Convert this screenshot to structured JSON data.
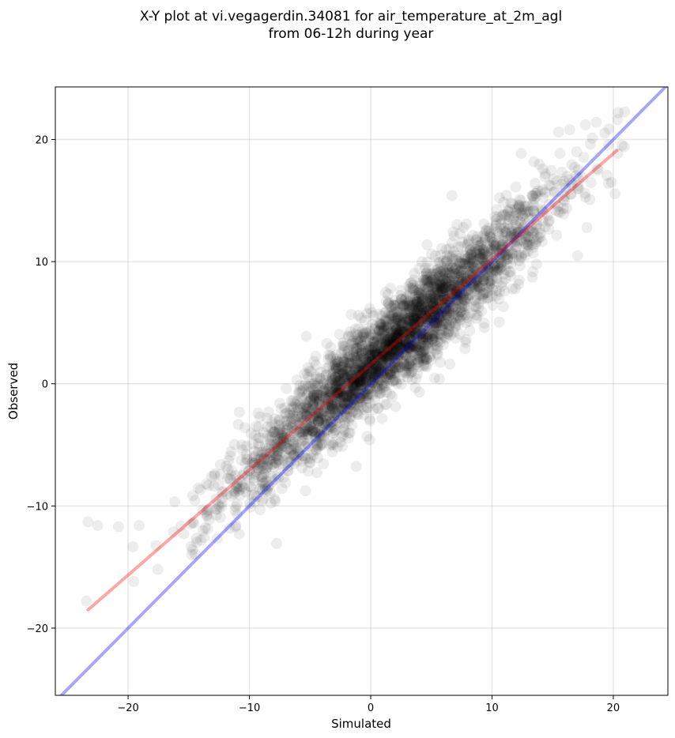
{
  "chart_data": {
    "type": "scatter",
    "title_line1": "X-Y plot at vi.vegagerdin.34081 for air_temperature_at_2m_agl",
    "title_line2": "from 06-12h during year",
    "xlabel": "Simulated",
    "ylabel": "Observed",
    "xlim": [
      -26,
      24.5
    ],
    "ylim": [
      -25.5,
      24.3
    ],
    "xticks": [
      -20,
      -10,
      0,
      10,
      20
    ],
    "xtick_labels": [
      "−20",
      "−10",
      "0",
      "10",
      "20"
    ],
    "yticks": [
      -20,
      -10,
      0,
      10,
      20
    ],
    "ytick_labels": [
      "−20",
      "−10",
      "0",
      "10",
      "20"
    ],
    "grid": true,
    "scatter": {
      "color": "#000000",
      "alpha": 0.07,
      "approx_count": 3200,
      "slope": 0.865,
      "intercept": 1.6,
      "x_center": 2.0,
      "x_std": 6.3,
      "x_range": [
        -23.5,
        22
      ],
      "residual_std": 1.9,
      "outliers_note_points": [
        [
          -23.3,
          -11.3
        ],
        [
          -22.5,
          -11.6
        ],
        [
          -20.8,
          -11.7
        ],
        [
          -19.1,
          -11.6
        ],
        [
          15.5,
          20.6
        ],
        [
          16.4,
          20.8
        ],
        [
          17.7,
          21.2
        ],
        [
          18.6,
          21.4
        ],
        [
          20.4,
          22.2
        ],
        [
          6.7,
          15.4
        ]
      ]
    },
    "series": [
      {
        "line": "identity",
        "color": "#0000ff",
        "alpha": 0.35,
        "x": [
          -26,
          24.5
        ],
        "y": [
          -26,
          24.5
        ]
      },
      {
        "line": "fit",
        "color": "#ff0000",
        "alpha": 0.35,
        "x": [
          -23.3,
          20.3
        ],
        "y": [
          -18.5,
          19.1
        ]
      }
    ]
  }
}
